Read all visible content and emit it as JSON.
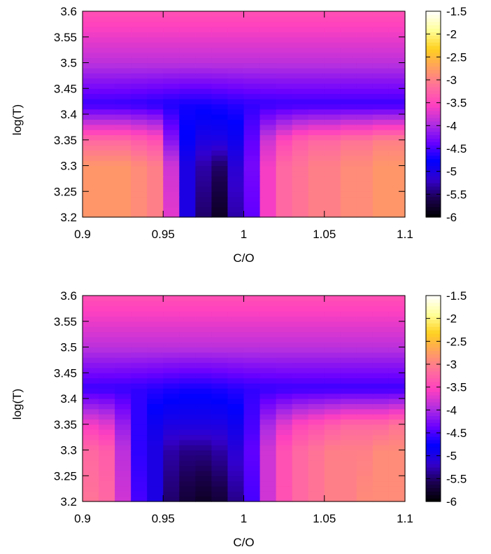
{
  "chart_data": [
    {
      "type": "heatmap",
      "xlabel": "C/O",
      "ylabel": "log(T)",
      "xlim": [
        0.9,
        1.1
      ],
      "ylim": [
        3.2,
        3.6
      ],
      "x_ticks": [
        "0.9",
        "0.95",
        "1",
        "1.05",
        "1.1"
      ],
      "y_ticks": [
        "3.2",
        "3.25",
        "3.3",
        "3.35",
        "3.4",
        "3.45",
        "3.5",
        "3.55",
        "3.6"
      ],
      "colorbar": {
        "range": [
          -6,
          -1.5
        ],
        "ticks": [
          "-1.5",
          "-2",
          "-2.5",
          "-3",
          "-3.5",
          "-4",
          "-4.5",
          "-5",
          "-5.5",
          "-6"
        ],
        "palette": [
          "#000000",
          "#1a004d",
          "#3300cc",
          "#0000ff",
          "#6a00ff",
          "#b12ee0",
          "#ff40c0",
          "#ff6f9c",
          "#ff9f5f",
          "#ffd020",
          "#ffff99",
          "#ffffff"
        ]
      },
      "x_centers": [
        0.905,
        0.915,
        0.925,
        0.935,
        0.945,
        0.955,
        0.965,
        0.975,
        0.985,
        0.995,
        1.005,
        1.015,
        1.025,
        1.035,
        1.045,
        1.055,
        1.065,
        1.075,
        1.085,
        1.095
      ],
      "low_region": {
        "description_values_at_logT": [
          3.2,
          3.3,
          3.35
        ],
        "rows": [
          [
            -2.8,
            -2.8,
            -2.8,
            -2.9,
            -3.0,
            -3.7,
            -5.0,
            -5.5,
            -5.8,
            -5.3,
            -4.4,
            -3.6,
            -3.2,
            -3.1,
            -3.0,
            -3.0,
            -2.9,
            -2.9,
            -2.8,
            -2.8
          ],
          [
            -2.8,
            -2.8,
            -2.8,
            -2.9,
            -3.0,
            -3.8,
            -5.0,
            -5.3,
            -5.5,
            -5.1,
            -4.3,
            -3.6,
            -3.2,
            -3.1,
            -3.0,
            -3.0,
            -2.9,
            -2.9,
            -2.8,
            -2.8
          ],
          [
            -3.2,
            -3.2,
            -3.2,
            -3.3,
            -3.4,
            -4.2,
            -4.8,
            -5.0,
            -5.0,
            -4.9,
            -4.4,
            -3.8,
            -3.5,
            -3.3,
            -3.2,
            -3.2,
            -3.1,
            -3.1,
            -3.0,
            -3.0
          ]
        ]
      }
    },
    {
      "type": "heatmap",
      "xlabel": "C/O",
      "ylabel": "log(T)",
      "xlim": [
        0.9,
        1.1
      ],
      "ylim": [
        3.2,
        3.6
      ],
      "x_ticks": [
        "0.9",
        "0.95",
        "1",
        "1.05",
        "1.1"
      ],
      "y_ticks": [
        "3.2",
        "3.25",
        "3.3",
        "3.35",
        "3.4",
        "3.45",
        "3.5",
        "3.55",
        "3.6"
      ],
      "colorbar": {
        "range": [
          -6,
          -1.5
        ],
        "ticks": [
          "-1.5",
          "-2",
          "-2.5",
          "-3",
          "-3.5",
          "-4",
          "-4.5",
          "-5",
          "-5.5",
          "-6"
        ],
        "palette": [
          "#000000",
          "#1a004d",
          "#3300cc",
          "#0000ff",
          "#6a00ff",
          "#b12ee0",
          "#ff40c0",
          "#ff6f9c",
          "#ff9f5f",
          "#ffd020",
          "#ffff99",
          "#ffffff"
        ]
      },
      "x_centers": [
        0.905,
        0.915,
        0.925,
        0.935,
        0.945,
        0.955,
        0.965,
        0.975,
        0.985,
        0.995,
        1.005,
        1.015,
        1.025,
        1.035,
        1.045,
        1.055,
        1.065,
        1.075,
        1.085,
        1.095
      ],
      "low_region": {
        "description_values_at_logT": [
          3.2,
          3.3,
          3.35
        ],
        "rows": [
          [
            -3.1,
            -3.2,
            -3.8,
            -4.5,
            -5.0,
            -5.5,
            -5.7,
            -5.8,
            -5.7,
            -5.4,
            -4.5,
            -3.8,
            -3.4,
            -3.2,
            -3.1,
            -3.0,
            -3.0,
            -2.9,
            -2.9,
            -2.9
          ],
          [
            -3.2,
            -3.3,
            -3.9,
            -4.6,
            -5.0,
            -5.3,
            -5.4,
            -5.4,
            -5.3,
            -5.1,
            -4.4,
            -3.8,
            -3.4,
            -3.2,
            -3.1,
            -3.0,
            -3.0,
            -3.0,
            -2.9,
            -2.9
          ],
          [
            -3.6,
            -3.7,
            -4.1,
            -4.6,
            -4.9,
            -5.0,
            -5.0,
            -5.0,
            -5.0,
            -4.9,
            -4.5,
            -4.0,
            -3.7,
            -3.5,
            -3.4,
            -3.3,
            -3.2,
            -3.2,
            -3.2,
            -3.1
          ]
        ]
      }
    }
  ]
}
